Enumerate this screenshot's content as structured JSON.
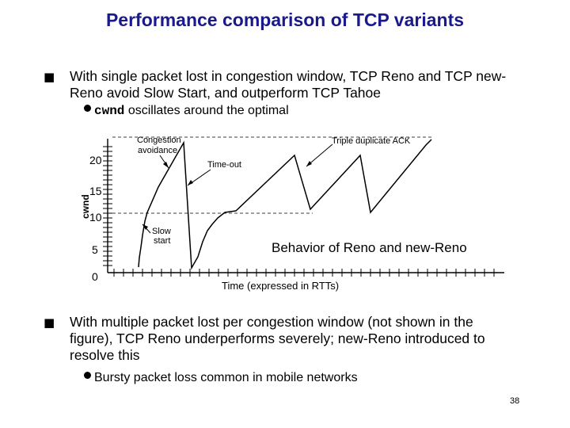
{
  "title": "Performance comparison of TCP variants",
  "bullet1": {
    "text": "With single packet lost in congestion window, TCP Reno and TCP new-Reno avoid Slow Start, and outperform TCP Tahoe",
    "sub": {
      "code": "cwnd",
      "text": " oscillates around the optimal"
    }
  },
  "diagram": {
    "y_axis_label": "cwnd",
    "y_ticks": [
      "20",
      "15",
      "10",
      "5",
      "0"
    ],
    "x_axis_label": "Time (expressed in RTTs)",
    "annotations": {
      "congestion_avoidance": [
        "Congestion",
        "avoidance"
      ],
      "triple_dup_ack": "Triple duplicate ACK",
      "timeout": "Time-out",
      "slow_start": [
        "Slow",
        "start"
      ],
      "behavior": "Behavior of Reno and new-Reno"
    }
  },
  "bullet2": {
    "text": "With multiple packet lost per congestion window (not shown in the figure), TCP Reno underperforms severely; new-Reno introduced to resolve this",
    "sub": {
      "text": "Bursty packet loss common in mobile networks"
    }
  },
  "page_number": "38"
}
